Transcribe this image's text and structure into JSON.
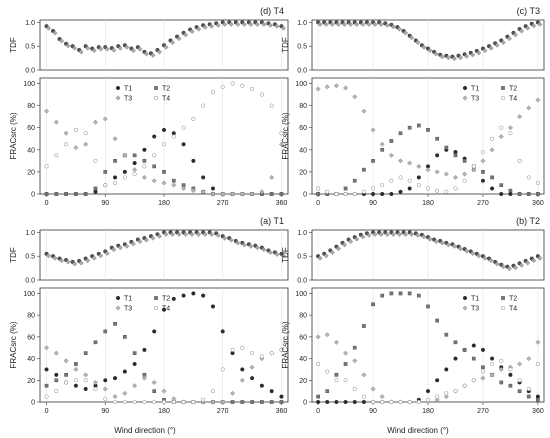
{
  "figure": {
    "xlabel_bottom_left": "Wind direction (°)",
    "xlabel_bottom_right": "Wind direction (°)"
  },
  "chart_data": [
    {
      "panel_id": "d",
      "title": "(d) T4",
      "type": "scatter",
      "x_ticks": [
        0,
        90,
        180,
        270,
        360
      ],
      "xlim": [
        -10,
        370
      ],
      "tdf": {
        "ylabel": "TDF",
        "ylim": [
          0,
          1.05
        ],
        "y_ticks": [
          0.0,
          0.5,
          1.0
        ],
        "x": [
          0,
          10,
          20,
          30,
          40,
          50,
          60,
          70,
          80,
          90,
          100,
          110,
          120,
          130,
          140,
          150,
          160,
          170,
          180,
          190,
          200,
          210,
          220,
          230,
          240,
          250,
          260,
          270,
          280,
          290,
          300,
          310,
          320,
          330,
          340,
          350,
          360
        ],
        "y": [
          0.92,
          0.82,
          0.65,
          0.55,
          0.5,
          0.42,
          0.5,
          0.45,
          0.48,
          0.48,
          0.46,
          0.5,
          0.52,
          0.45,
          0.48,
          0.38,
          0.35,
          0.42,
          0.52,
          0.62,
          0.7,
          0.78,
          0.85,
          0.9,
          0.94,
          0.96,
          0.98,
          1.0,
          1.0,
          1.0,
          1.0,
          1.0,
          1.0,
          1.0,
          0.98,
          0.96,
          0.92
        ]
      },
      "frac": {
        "ylabel": "FRACsrc (%)",
        "ylim": [
          0,
          105
        ],
        "y_ticks": [
          0,
          20,
          40,
          60,
          80,
          100
        ],
        "legend": [
          "T1",
          "T2",
          "T3",
          "T4"
        ],
        "x": [
          0,
          15,
          30,
          45,
          60,
          75,
          90,
          105,
          120,
          135,
          150,
          165,
          180,
          195,
          210,
          225,
          240,
          255,
          270,
          285,
          300,
          315,
          330,
          345,
          360
        ],
        "series": [
          {
            "name": "T1",
            "values": [
              0,
              0,
              0,
              0,
              0,
              2,
              8,
              15,
              20,
              28,
              40,
              52,
              58,
              55,
              45,
              30,
              15,
              5,
              0,
              0,
              0,
              0,
              0,
              0,
              0
            ]
          },
          {
            "name": "T2",
            "values": [
              0,
              0,
              0,
              0,
              0,
              5,
              20,
              30,
              35,
              35,
              30,
              25,
              20,
              12,
              8,
              5,
              2,
              0,
              0,
              0,
              0,
              0,
              0,
              0,
              0
            ]
          },
          {
            "name": "T3",
            "values": [
              75,
              65,
              55,
              42,
              45,
              65,
              68,
              50,
              35,
              22,
              15,
              12,
              10,
              8,
              5,
              3,
              2,
              0,
              0,
              0,
              0,
              0,
              2,
              15,
              45
            ]
          },
          {
            "name": "T4",
            "values": [
              25,
              35,
              45,
              58,
              55,
              30,
              8,
              10,
              15,
              18,
              25,
              35,
              45,
              52,
              60,
              68,
              80,
              92,
              97,
              100,
              98,
              95,
              90,
              80,
              55
            ]
          }
        ]
      }
    },
    {
      "panel_id": "c",
      "title": "(c) T3",
      "type": "scatter",
      "x_ticks": [
        0,
        90,
        180,
        270,
        360
      ],
      "xlim": [
        -10,
        370
      ],
      "tdf": {
        "ylabel": "TDF",
        "ylim": [
          0,
          1.05
        ],
        "y_ticks": [
          0.0,
          0.5,
          1.0
        ],
        "x": [
          0,
          10,
          20,
          30,
          40,
          50,
          60,
          70,
          80,
          90,
          100,
          110,
          120,
          130,
          140,
          150,
          160,
          170,
          180,
          190,
          200,
          210,
          220,
          230,
          240,
          250,
          260,
          270,
          280,
          290,
          300,
          310,
          320,
          330,
          340,
          350,
          360
        ],
        "y": [
          1.0,
          1.0,
          1.0,
          1.0,
          1.0,
          1.0,
          1.0,
          1.0,
          1.0,
          1.0,
          1.0,
          0.98,
          0.95,
          0.9,
          0.82,
          0.72,
          0.62,
          0.52,
          0.45,
          0.38,
          0.32,
          0.3,
          0.28,
          0.3,
          0.33,
          0.36,
          0.4,
          0.45,
          0.5,
          0.56,
          0.62,
          0.7,
          0.78,
          0.86,
          0.92,
          0.97,
          1.0
        ]
      },
      "frac": {
        "ylabel": "FRACsrc (%)",
        "ylim": [
          0,
          105
        ],
        "y_ticks": [
          0,
          20,
          40,
          60,
          80,
          100
        ],
        "legend": [
          "T1",
          "T2",
          "T3",
          "T4"
        ],
        "x": [
          0,
          15,
          30,
          45,
          60,
          75,
          90,
          105,
          120,
          135,
          150,
          165,
          180,
          195,
          210,
          225,
          240,
          255,
          270,
          285,
          300,
          315,
          330,
          345,
          360
        ],
        "series": [
          {
            "name": "T1",
            "values": [
              0,
              0,
              0,
              0,
              0,
              0,
              0,
              0,
              0,
              2,
              5,
              15,
              25,
              35,
              40,
              38,
              32,
              22,
              12,
              5,
              0,
              0,
              0,
              0,
              0
            ]
          },
          {
            "name": "T2",
            "values": [
              0,
              0,
              0,
              5,
              12,
              22,
              30,
              40,
              48,
              55,
              60,
              62,
              58,
              50,
              42,
              35,
              30,
              25,
              20,
              15,
              8,
              3,
              0,
              0,
              0
            ]
          },
          {
            "name": "T3",
            "values": [
              95,
              97,
              98,
              96,
              88,
              75,
              58,
              45,
              35,
              30,
              28,
              25,
              22,
              20,
              18,
              15,
              18,
              22,
              30,
              40,
              52,
              60,
              70,
              78,
              85
            ]
          },
          {
            "name": "T4",
            "values": [
              5,
              2,
              0,
              0,
              0,
              2,
              5,
              8,
              12,
              15,
              12,
              8,
              5,
              3,
              2,
              5,
              12,
              25,
              38,
              50,
              60,
              55,
              30,
              15,
              10
            ]
          }
        ]
      }
    },
    {
      "panel_id": "a",
      "title": "(a) T1",
      "type": "scatter",
      "x_ticks": [
        0,
        90,
        180,
        270,
        360
      ],
      "xlim": [
        -10,
        370
      ],
      "tdf": {
        "ylabel": "TDF",
        "ylim": [
          0,
          1.05
        ],
        "y_ticks": [
          0.0,
          0.5,
          1.0
        ],
        "x": [
          0,
          10,
          20,
          30,
          40,
          50,
          60,
          70,
          80,
          90,
          100,
          110,
          120,
          130,
          140,
          150,
          160,
          170,
          180,
          190,
          200,
          210,
          220,
          230,
          240,
          250,
          260,
          270,
          280,
          290,
          300,
          310,
          320,
          330,
          340,
          350,
          360
        ],
        "y": [
          0.55,
          0.5,
          0.45,
          0.42,
          0.38,
          0.4,
          0.45,
          0.5,
          0.55,
          0.6,
          0.68,
          0.72,
          0.75,
          0.8,
          0.85,
          0.88,
          0.92,
          0.96,
          1.0,
          1.0,
          1.0,
          1.0,
          1.0,
          1.0,
          1.0,
          1.0,
          0.98,
          0.92,
          0.88,
          0.82,
          0.78,
          0.75,
          0.72,
          0.68,
          0.62,
          0.58,
          0.55
        ]
      },
      "frac": {
        "ylabel": "FRACsrc (%)",
        "ylim": [
          0,
          105
        ],
        "y_ticks": [
          0,
          20,
          40,
          60,
          80,
          100
        ],
        "legend": [
          "T1",
          "T2",
          "T3",
          "T4"
        ],
        "x": [
          0,
          15,
          30,
          45,
          60,
          75,
          90,
          105,
          120,
          135,
          150,
          165,
          180,
          195,
          210,
          225,
          240,
          255,
          270,
          285,
          300,
          315,
          330,
          345,
          360
        ],
        "series": [
          {
            "name": "T1",
            "values": [
              30,
              25,
              18,
              15,
              12,
              15,
              20,
              22,
              28,
              35,
              48,
              65,
              85,
              95,
              98,
              100,
              98,
              88,
              65,
              45,
              30,
              22,
              15,
              10,
              5
            ]
          },
          {
            "name": "T2",
            "values": [
              15,
              20,
              25,
              35,
              45,
              55,
              65,
              72,
              60,
              45,
              25,
              10,
              2,
              0,
              0,
              0,
              0,
              0,
              0,
              0,
              0,
              0,
              0,
              0,
              0
            ]
          },
          {
            "name": "T3",
            "values": [
              50,
              45,
              38,
              30,
              25,
              18,
              12,
              5,
              8,
              15,
              22,
              18,
              10,
              3,
              0,
              0,
              0,
              0,
              0,
              8,
              20,
              32,
              40,
              45,
              48
            ]
          },
          {
            "name": "T4",
            "values": [
              5,
              10,
              18,
              20,
              20,
              12,
              3,
              0,
              0,
              0,
              0,
              0,
              0,
              0,
              0,
              0,
              2,
              10,
              30,
              48,
              50,
              45,
              42,
              45,
              48
            ]
          }
        ]
      }
    },
    {
      "panel_id": "b",
      "title": "(b) T2",
      "type": "scatter",
      "x_ticks": [
        0,
        90,
        180,
        270,
        360
      ],
      "xlim": [
        -10,
        370
      ],
      "tdf": {
        "ylabel": "TDF",
        "ylim": [
          0,
          1.05
        ],
        "y_ticks": [
          0.0,
          0.5,
          1.0
        ],
        "x": [
          0,
          10,
          20,
          30,
          40,
          50,
          60,
          70,
          80,
          90,
          100,
          110,
          120,
          130,
          140,
          150,
          160,
          170,
          180,
          190,
          200,
          210,
          220,
          230,
          240,
          250,
          260,
          270,
          280,
          290,
          300,
          310,
          320,
          330,
          340,
          350,
          360
        ],
        "y": [
          0.5,
          0.55,
          0.62,
          0.7,
          0.78,
          0.85,
          0.9,
          0.95,
          0.98,
          1.0,
          1.0,
          1.0,
          1.0,
          1.0,
          1.0,
          1.0,
          0.98,
          0.95,
          0.9,
          0.85,
          0.82,
          0.78,
          0.75,
          0.7,
          0.65,
          0.6,
          0.55,
          0.5,
          0.45,
          0.38,
          0.32,
          0.28,
          0.3,
          0.35,
          0.4,
          0.45,
          0.5
        ]
      },
      "frac": {
        "ylabel": "FRACsrc (%)",
        "ylim": [
          0,
          105
        ],
        "y_ticks": [
          0,
          20,
          40,
          60,
          80,
          100
        ],
        "legend": [
          "T1",
          "T2",
          "T3",
          "T4"
        ],
        "x": [
          0,
          15,
          30,
          45,
          60,
          75,
          90,
          105,
          120,
          135,
          150,
          165,
          180,
          195,
          210,
          225,
          240,
          255,
          270,
          285,
          300,
          315,
          330,
          345,
          360
        ],
        "series": [
          {
            "name": "T1",
            "values": [
              0,
              0,
              0,
              0,
              0,
              0,
              0,
              0,
              0,
              0,
              0,
              2,
              10,
              20,
              30,
              40,
              48,
              52,
              48,
              40,
              32,
              25,
              18,
              10,
              5
            ]
          },
          {
            "name": "T2",
            "values": [
              5,
              10,
              25,
              35,
              50,
              70,
              90,
              98,
              100,
              100,
              100,
              98,
              88,
              75,
              62,
              55,
              48,
              40,
              32,
              25,
              18,
              15,
              10,
              5,
              2
            ]
          },
          {
            "name": "T3",
            "values": [
              60,
              62,
              55,
              45,
              38,
              25,
              12,
              5,
              0,
              0,
              0,
              0,
              0,
              2,
              5,
              10,
              15,
              20,
              22,
              25,
              30,
              32,
              35,
              40,
              55
            ]
          },
          {
            "name": "T4",
            "values": [
              35,
              28,
              20,
              20,
              12,
              5,
              0,
              0,
              0,
              0,
              0,
              0,
              2,
              5,
              8,
              10,
              15,
              20,
              28,
              35,
              38,
              30,
              20,
              12,
              35
            ]
          }
        ]
      }
    }
  ]
}
